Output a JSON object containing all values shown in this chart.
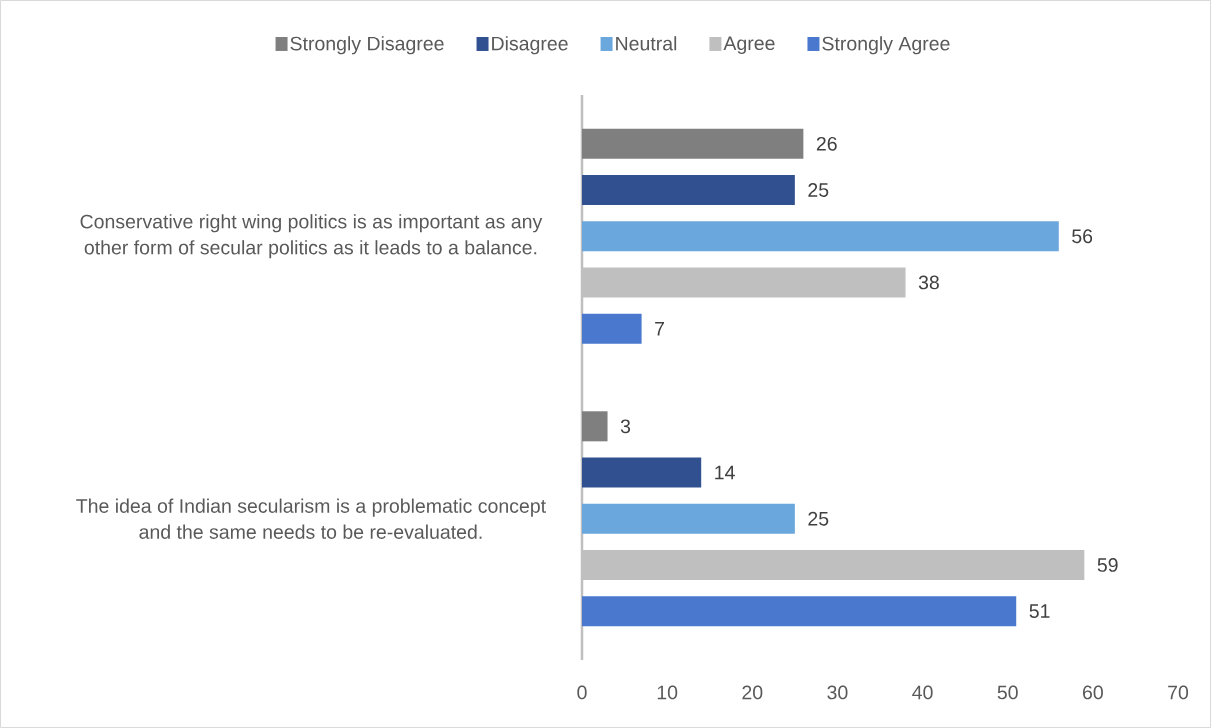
{
  "chart_data": {
    "type": "bar",
    "orientation": "horizontal",
    "categories": [
      "Conservative right wing politics is as important as any other form of secular politics as it leads to a balance.",
      "The idea of Indian secularism is a problematic concept and the same needs to be re-evaluated."
    ],
    "series": [
      {
        "name": "Strongly Disagree",
        "color": "#7f7f7f",
        "values": [
          26,
          3
        ]
      },
      {
        "name": "Disagree",
        "color": "#30508f",
        "values": [
          25,
          14
        ]
      },
      {
        "name": "Neutral",
        "color": "#6aa7dd",
        "values": [
          56,
          25
        ]
      },
      {
        "name": "Agree",
        "color": "#bfbfbf",
        "values": [
          38,
          59
        ]
      },
      {
        "name": "Strongly Agree",
        "color": "#4a78cf",
        "values": [
          7,
          51
        ]
      }
    ],
    "xlim": [
      0,
      70
    ],
    "xticks": [
      0,
      10,
      20,
      30,
      40,
      50,
      60,
      70
    ],
    "data_labels": true,
    "legend": "top"
  }
}
